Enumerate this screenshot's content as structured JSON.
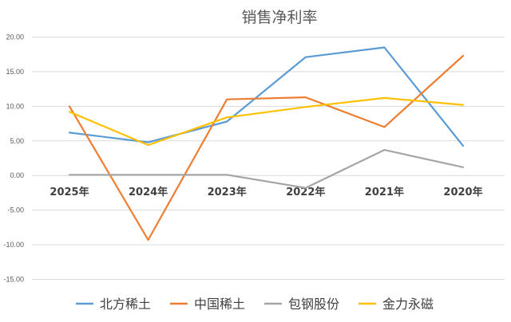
{
  "chart_data": {
    "type": "line",
    "title": "销售净利率",
    "xlabel": "",
    "ylabel": "",
    "categories": [
      "2025年",
      "2024年",
      "2023年",
      "2022年",
      "2021年",
      "2020年"
    ],
    "ylim": [
      -15,
      20
    ],
    "yticks": [
      "20.00",
      "15.00",
      "10.00",
      "5.00",
      "0.00",
      "-5.00",
      "-10.00",
      "-15.00"
    ],
    "ytick_values": [
      20,
      15,
      10,
      5,
      0,
      -5,
      -10,
      -15
    ],
    "grid": true,
    "legend_position": "bottom",
    "series": [
      {
        "name": "北方稀土",
        "color": "#5b9bd5",
        "values": [
          6.2,
          4.8,
          7.8,
          17.1,
          18.5,
          4.3
        ]
      },
      {
        "name": "中国稀土",
        "color": "#ed7d31",
        "values": [
          10.0,
          -9.3,
          11.0,
          11.3,
          7.0,
          17.3
        ]
      },
      {
        "name": "包钢股份",
        "color": "#a5a5a5",
        "values": [
          0.1,
          0.1,
          0.1,
          -1.8,
          3.7,
          1.2
        ]
      },
      {
        "name": "金力永磁",
        "color": "#ffc000",
        "values": [
          9.2,
          4.4,
          8.4,
          9.9,
          11.2,
          10.2
        ]
      }
    ]
  }
}
